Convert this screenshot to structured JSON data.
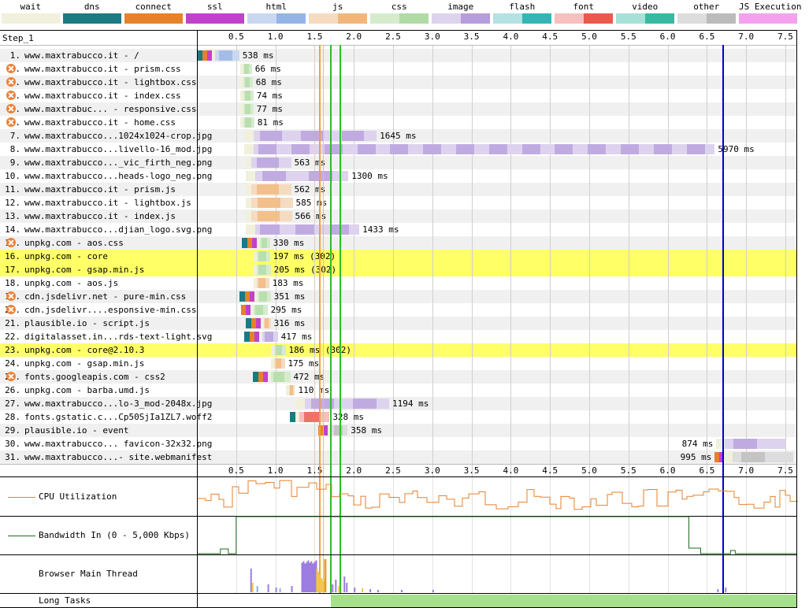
{
  "legend": [
    {
      "name": "wait",
      "color_a": "#f1f0dc",
      "color_b": "#f1f0dc"
    },
    {
      "name": "dns",
      "color_a": "#1b7a82",
      "color_b": "#1b7a82"
    },
    {
      "name": "connect",
      "color_a": "#e6812c",
      "color_b": "#e6812c"
    },
    {
      "name": "ssl",
      "color_a": "#c141cd",
      "color_b": "#c141cd"
    },
    {
      "name": "html",
      "color_a": "#c9d8f0",
      "color_b": "#95b4e6"
    },
    {
      "name": "js",
      "color_a": "#f5dbc0",
      "color_b": "#f2b67a"
    },
    {
      "name": "css",
      "color_a": "#d6ebce",
      "color_b": "#b0dba4"
    },
    {
      "name": "image",
      "color_a": "#ddd3ee",
      "color_b": "#b69ddc"
    },
    {
      "name": "flash",
      "color_a": "#b4e2e2",
      "color_b": "#35b5b5"
    },
    {
      "name": "font",
      "color_a": "#f5c0bd",
      "color_b": "#e9594d"
    },
    {
      "name": "video",
      "color_a": "#a6e0d6",
      "color_b": "#38b9a2"
    },
    {
      "name": "other",
      "color_a": "#dddddd",
      "color_b": "#bbbbbb"
    },
    {
      "name": "JS Execution",
      "color_a": "#f4a1ef",
      "color_b": "#f4a1ef"
    }
  ],
  "step_label": "Step_1",
  "ticks": [
    "0.5",
    "1.0",
    "1.5",
    "2.0",
    "2.5",
    "3.0",
    "3.5",
    "4.0",
    "4.5",
    "5.0",
    "5.5",
    "6.0",
    "6.5",
    "7.0",
    "7.5"
  ],
  "rows": [
    {
      "num": "1.",
      "label": "www.maxtrabucco.it - /",
      "time": "538 ms",
      "type": "html",
      "start": 0.0,
      "end": 0.54,
      "dns": true,
      "connect": true,
      "ssl": true,
      "warn": false,
      "highlight": false
    },
    {
      "num": "2.",
      "label": "www.maxtrabucco.it - prism.css",
      "time": "66 ms",
      "type": "css",
      "start": 0.55,
      "end": 0.7,
      "warn": true,
      "highlight": false
    },
    {
      "num": "3.",
      "label": "www.maxtrabucco.it - lightbox.css",
      "time": "68 ms",
      "type": "css",
      "start": 0.55,
      "end": 0.71,
      "warn": true,
      "highlight": false
    },
    {
      "num": "4.",
      "label": "www.maxtrabucco.it - index.css",
      "time": "74 ms",
      "type": "css",
      "start": 0.55,
      "end": 0.72,
      "warn": true,
      "highlight": false
    },
    {
      "num": "5.",
      "label": "www.maxtrabuc... - responsive.css",
      "time": "77 ms",
      "type": "css",
      "start": 0.55,
      "end": 0.72,
      "warn": true,
      "highlight": false
    },
    {
      "num": "6.",
      "label": "www.maxtrabucco.it - home.css",
      "time": "81 ms",
      "type": "css",
      "start": 0.55,
      "end": 0.73,
      "warn": true,
      "highlight": false
    },
    {
      "num": "7.",
      "label": "www.maxtrabucco...1024x1024-crop.jpg",
      "time": "1645 ms",
      "type": "image",
      "start": 0.6,
      "end": 2.29,
      "warn": false,
      "highlight": false
    },
    {
      "num": "8.",
      "label": "www.maxtrabucco...livello-16_mod.jpg",
      "time": "5970 ms",
      "type": "image",
      "start": 0.6,
      "end": 6.6,
      "warn": false,
      "highlight": false
    },
    {
      "num": "9.",
      "label": "www.maxtrabucco..._vic_firth_neg.png",
      "time": "563 ms",
      "type": "image",
      "start": 0.62,
      "end": 1.2,
      "warn": false,
      "highlight": false
    },
    {
      "num": "10.",
      "label": "www.maxtrabucco...heads-logo_neg.png",
      "time": "1300 ms",
      "type": "image",
      "start": 0.62,
      "end": 1.93,
      "warn": false,
      "highlight": false
    },
    {
      "num": "11.",
      "label": "www.maxtrabucco.it - prism.js",
      "time": "562 ms",
      "type": "js",
      "start": 0.62,
      "end": 1.2,
      "warn": false,
      "highlight": false
    },
    {
      "num": "12.",
      "label": "www.maxtrabucco.it - lightbox.js",
      "time": "585 ms",
      "type": "js",
      "start": 0.62,
      "end": 1.22,
      "warn": false,
      "highlight": false
    },
    {
      "num": "13.",
      "label": "www.maxtrabucco.it - index.js",
      "time": "566 ms",
      "type": "js",
      "start": 0.62,
      "end": 1.21,
      "warn": false,
      "highlight": false
    },
    {
      "num": "14.",
      "label": "www.maxtrabucco...djian_logo.svg.png",
      "time": "1433 ms",
      "type": "image",
      "start": 0.62,
      "end": 2.07,
      "warn": false,
      "highlight": false
    },
    {
      "num": "15.",
      "label": "unpkg.com - aos.css",
      "time": "330 ms",
      "type": "css",
      "start": 0.57,
      "end": 0.93,
      "dns": true,
      "connect": true,
      "ssl": true,
      "warn": true,
      "highlight": false
    },
    {
      "num": "16.",
      "label": "unpkg.com - core",
      "time": "197 ms (302)",
      "type": "css",
      "start": 0.72,
      "end": 0.93,
      "warn": false,
      "highlight": true
    },
    {
      "num": "17.",
      "label": "unpkg.com - gsap.min.js",
      "time": "205 ms (302)",
      "type": "css",
      "start": 0.72,
      "end": 0.94,
      "warn": false,
      "highlight": true
    },
    {
      "num": "18.",
      "label": "unpkg.com - aos.js",
      "time": "183 ms",
      "type": "js",
      "start": 0.72,
      "end": 0.92,
      "warn": false,
      "highlight": false
    },
    {
      "num": "19.",
      "label": "cdn.jsdelivr.net - pure-min.css",
      "time": "351 ms",
      "type": "css",
      "start": 0.54,
      "end": 0.94,
      "dns": true,
      "connect": true,
      "ssl": true,
      "warn": true,
      "highlight": false
    },
    {
      "num": "20.",
      "label": "cdn.jsdelivr....esponsive-min.css",
      "time": "295 ms",
      "type": "css",
      "start": 0.56,
      "end": 0.9,
      "connect": true,
      "ssl": true,
      "warn": true,
      "highlight": false
    },
    {
      "num": "21.",
      "label": "plausible.io - script.js",
      "time": "316 ms",
      "type": "js",
      "start": 0.62,
      "end": 0.94,
      "dns": true,
      "connect": true,
      "ssl": true,
      "warn": false,
      "highlight": false
    },
    {
      "num": "22.",
      "label": "digitalasset.in...rds-text-light.svg",
      "time": "417 ms",
      "type": "image",
      "start": 0.6,
      "end": 1.03,
      "dns": true,
      "connect": true,
      "ssl": true,
      "warn": false,
      "highlight": false
    },
    {
      "num": "23.",
      "label": "unpkg.com - core@2.10.3",
      "time": "186 ms (302)",
      "type": "css",
      "start": 0.94,
      "end": 1.13,
      "warn": false,
      "highlight": true
    },
    {
      "num": "24.",
      "label": "unpkg.com - gsap.min.js",
      "time": "175 ms",
      "type": "js",
      "start": 0.94,
      "end": 1.12,
      "warn": false,
      "highlight": false
    },
    {
      "num": "25.",
      "label": "fonts.googleapis.com - css2",
      "time": "472 ms",
      "type": "css",
      "start": 0.71,
      "end": 1.19,
      "dns": true,
      "connect": true,
      "ssl": true,
      "warn": true,
      "highlight": false
    },
    {
      "num": "26.",
      "label": "unpkg.com - barba.umd.js",
      "time": "110 ms",
      "type": "js",
      "start": 1.13,
      "end": 1.25,
      "warn": false,
      "highlight": false
    },
    {
      "num": "27.",
      "label": "www.maxtrabucco...lo-3_mod-2048x.jpg",
      "time": "1194 ms",
      "type": "image",
      "start": 1.25,
      "end": 2.45,
      "warn": false,
      "highlight": false
    },
    {
      "num": "28.",
      "label": "fonts.gstatic.c...Cp50SjIa1ZL7.woff2",
      "time": "328 ms",
      "type": "font",
      "start": 1.18,
      "end": 1.69,
      "dns": true,
      "warn": false,
      "highlight": false
    },
    {
      "num": "29.",
      "label": "plausible.io - event",
      "time": "358 ms",
      "type": "other",
      "start": 1.55,
      "end": 1.92,
      "connect": true,
      "ssl": true,
      "warn": false,
      "highlight": false
    },
    {
      "num": "30.",
      "label": "www.maxtrabucco... favicon-32x32.png",
      "time": "874 ms",
      "type": "image",
      "start": 6.62,
      "end": 7.5,
      "warn": false,
      "highlight": false,
      "label_left": true
    },
    {
      "num": "31.",
      "label": "www.maxtrabucco...- site.webmanifest",
      "time": "995 ms",
      "type": "other",
      "start": 6.6,
      "end": 7.6,
      "connect": true,
      "ssl": true,
      "warn": false,
      "highlight": false,
      "label_left": true
    }
  ],
  "markers": {
    "start_render": 1.56,
    "dom_interactive": 1.61,
    "dom_content_loaded": 1.7,
    "on_load": 1.82,
    "document_complete": 6.7
  },
  "sections": {
    "cpu": "CPU Utilization",
    "bandwidth": "Bandwidth In (0 - 5,000 Kbps)",
    "main_thread": "Browser Main Thread",
    "long_tasks": "Long Tasks"
  },
  "colors": {
    "row_alt": "#f0f0f0",
    "highlight": "#ffff66",
    "cpu_line": "#e6812c",
    "bandwidth_line": "#1e6b1e",
    "long_task": "#a7e08a",
    "doc_complete": "#0000cc",
    "render_green": "#28c028"
  }
}
